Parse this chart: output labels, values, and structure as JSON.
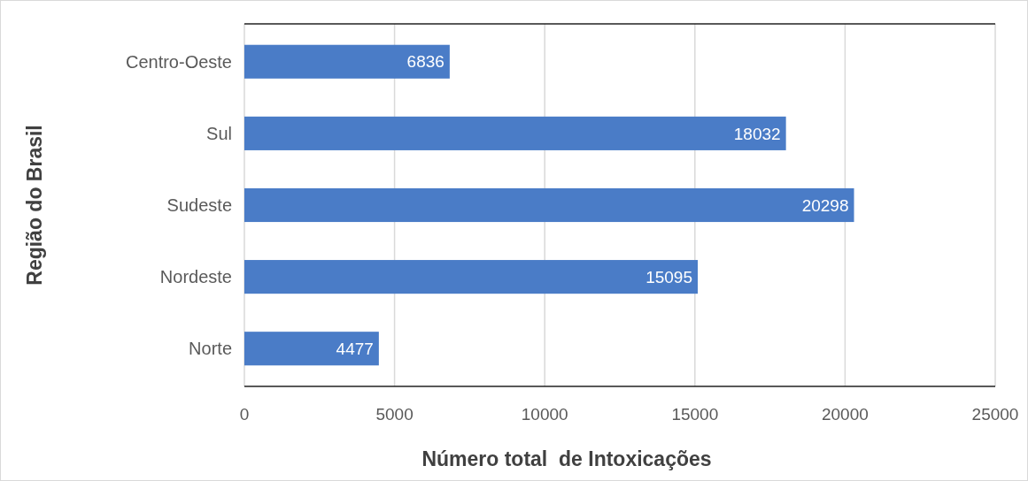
{
  "chart_data": {
    "type": "bar",
    "orientation": "horizontal",
    "xlabel": "Número total  de Intoxicações",
    "ylabel": "Região do Brasil",
    "categories": [
      "Centro-Oeste",
      "Sul",
      "Sudeste",
      "Nordeste",
      "Norte"
    ],
    "values": [
      6836,
      18032,
      20298,
      15095,
      4477
    ],
    "color": "#4a7cc7",
    "xlim": [
      0,
      25000
    ],
    "xticks": [
      0,
      5000,
      10000,
      15000,
      20000,
      25000
    ],
    "grid": "x",
    "data_labels": true
  }
}
